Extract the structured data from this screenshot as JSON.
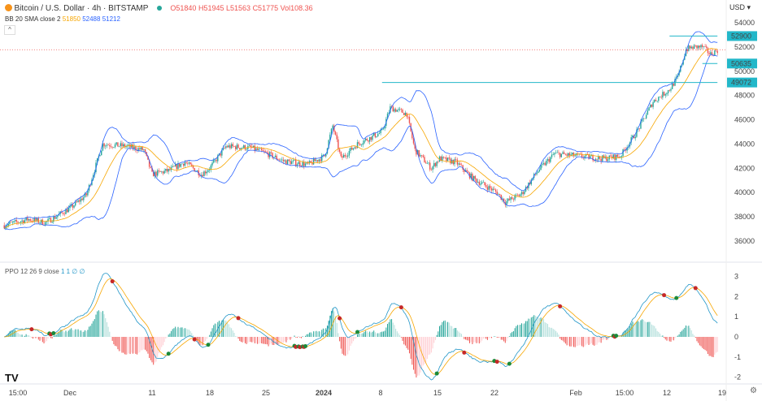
{
  "header": {
    "symbol": "Bitcoin / U.S. Dollar · 4h · BITSTAMP",
    "ohlc": {
      "o": "O51840",
      "h": "H51945",
      "l": "L51563",
      "c": "C51775",
      "vol": "Vol108.36"
    },
    "bb_label": "BB 20 SMA close 2",
    "bb_values": [
      "51850",
      "52488",
      "51212"
    ]
  },
  "ppo_legend": {
    "label": "PPO 12 26 9 close",
    "values": "1 1 ∅ ∅"
  },
  "currency": "USD",
  "colors": {
    "up": "#26a69a",
    "down": "#ef5350",
    "bb": "#2962ff",
    "sma": "#f7a600",
    "ppo": "#2196c8",
    "signal": "#f7a600",
    "level": "#22b7c9"
  },
  "chart_data": {
    "type": "candlestick",
    "interval": "4h",
    "price_axis": {
      "ticks": [
        36000,
        38000,
        40000,
        42000,
        44000,
        46000,
        48000,
        50000,
        52000,
        54000
      ],
      "ylim": [
        35500,
        54500
      ]
    },
    "ppo_axis": {
      "ticks": [
        3,
        2,
        1,
        0,
        -1,
        -2
      ]
    },
    "x_ticks": [
      "15:00",
      "Dec",
      "11",
      "18",
      "25",
      "2024",
      "8",
      "15",
      "22",
      "Feb",
      "15:00",
      "12",
      "19"
    ],
    "approx_close": [
      [
        "2023-11-23",
        37300
      ],
      [
        "2023-11-26",
        37800
      ],
      [
        "2023-11-28",
        37500
      ],
      [
        "2023-12-01",
        38700
      ],
      [
        "2023-12-03",
        39800
      ],
      [
        "2023-12-05",
        44000
      ],
      [
        "2023-12-08",
        43800
      ],
      [
        "2023-12-10",
        43500
      ],
      [
        "2023-12-11",
        41500
      ],
      [
        "2023-12-13",
        41800
      ],
      [
        "2023-12-15",
        42500
      ],
      [
        "2023-12-17",
        41500
      ],
      [
        "2023-12-18",
        42000
      ],
      [
        "2023-12-20",
        43800
      ],
      [
        "2023-12-23",
        43700
      ],
      [
        "2023-12-25",
        43200
      ],
      [
        "2023-12-27",
        42600
      ],
      [
        "2023-12-30",
        42300
      ],
      [
        "2024-01-01",
        43000
      ],
      [
        "2024-01-02",
        45500
      ],
      [
        "2024-01-03",
        42800
      ],
      [
        "2024-01-05",
        44000
      ],
      [
        "2024-01-08",
        45000
      ],
      [
        "2024-01-09",
        47000
      ],
      [
        "2024-01-11",
        46500
      ],
      [
        "2024-01-12",
        43500
      ],
      [
        "2024-01-14",
        42000
      ],
      [
        "2024-01-15",
        42800
      ],
      [
        "2024-01-17",
        42500
      ],
      [
        "2024-01-19",
        41200
      ],
      [
        "2024-01-22",
        40000
      ],
      [
        "2024-01-23",
        39200
      ],
      [
        "2024-01-25",
        39900
      ],
      [
        "2024-01-27",
        41800
      ],
      [
        "2024-01-29",
        43200
      ],
      [
        "2024-02-01",
        43000
      ],
      [
        "2024-02-04",
        42800
      ],
      [
        "2024-02-06",
        43000
      ],
      [
        "2024-02-08",
        45000
      ],
      [
        "2024-02-10",
        47500
      ],
      [
        "2024-02-12",
        48500
      ],
      [
        "2024-02-13",
        49500
      ],
      [
        "2024-02-14",
        51800
      ],
      [
        "2024-02-15",
        52000
      ],
      [
        "2024-02-16",
        52000
      ],
      [
        "2024-02-17",
        51400
      ],
      [
        "2024-02-18",
        51800
      ]
    ],
    "levels": [
      {
        "price": 52900,
        "label": "52900",
        "from": "2024-02-12"
      },
      {
        "price": 50635,
        "label": "50635",
        "from": "2024-02-16"
      },
      {
        "price": 49072,
        "label": "49072",
        "from": "2024-01-08"
      }
    ],
    "current_price": 51775
  }
}
